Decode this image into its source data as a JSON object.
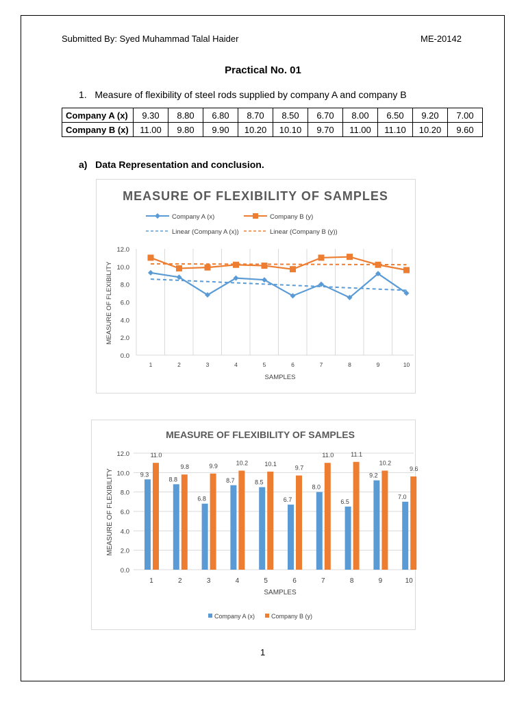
{
  "header": {
    "submitted_by": "Submitted By: Syed Muhammad Talal Haider",
    "roll_no": "ME-20142"
  },
  "title": "Practical No. 01",
  "question": "1.   Measure of flexibility of steel rods supplied by company A and company B",
  "table": {
    "rows": [
      {
        "label": "Company A (x)",
        "values": [
          "9.30",
          "8.80",
          "6.80",
          "8.70",
          "8.50",
          "6.70",
          "8.00",
          "6.50",
          "9.20",
          "7.00"
        ]
      },
      {
        "label": "Company B (x)",
        "values": [
          "11.00",
          "9.80",
          "9.90",
          "10.20",
          "10.10",
          "9.70",
          "11.00",
          "11.10",
          "10.20",
          "9.60"
        ]
      }
    ]
  },
  "section": "a)   Data Representation and conclusion.",
  "page_number": "1",
  "colors": {
    "company_a": "#5b9bd5",
    "company_b": "#ed7d31",
    "grid": "#d9d9d9",
    "title": "#595959"
  },
  "chart_data": [
    {
      "type": "line",
      "title": "MEASURE OF FLEXIBILITY OF SAMPLES",
      "xlabel": "SAMPLES",
      "ylabel": "MEASURE OF FLEXIBILITY",
      "categories": [
        "1",
        "2",
        "3",
        "4",
        "5",
        "6",
        "7",
        "8",
        "9",
        "10"
      ],
      "ylim": [
        0,
        12
      ],
      "yticks": [
        "0.0",
        "2.0",
        "4.0",
        "6.0",
        "8.0",
        "10.0",
        "12.0"
      ],
      "grid": "vertical",
      "legend": "top",
      "series": [
        {
          "name": "Company A (x)",
          "values": [
            9.3,
            8.8,
            6.8,
            8.7,
            8.5,
            6.7,
            8.0,
            6.5,
            9.2,
            7.0
          ],
          "marker": "diamond"
        },
        {
          "name": "Company B (y)",
          "values": [
            11.0,
            9.8,
            9.9,
            10.2,
            10.1,
            9.7,
            11.0,
            11.1,
            10.2,
            9.6
          ],
          "marker": "square"
        }
      ],
      "trendlines": [
        {
          "name": "Linear (Company A (x))",
          "of": 0
        },
        {
          "name": "Linear (Company B (y))",
          "of": 1
        }
      ]
    },
    {
      "type": "bar",
      "title": "MEASURE OF FLEXIBILITY OF SAMPLES",
      "xlabel": "SAMPLES",
      "ylabel": "MEASURE OF FLEXIBILITY",
      "categories": [
        "1",
        "2",
        "3",
        "4",
        "5",
        "6",
        "7",
        "8",
        "9",
        "10"
      ],
      "ylim": [
        0,
        12
      ],
      "yticks": [
        "0.0",
        "2.0",
        "4.0",
        "6.0",
        "8.0",
        "10.0",
        "12.0"
      ],
      "grid": "horizontal",
      "legend": "bottom",
      "data_labels": true,
      "series": [
        {
          "name": "Company A (x)",
          "values": [
            9.3,
            8.8,
            6.8,
            8.7,
            8.5,
            6.7,
            8.0,
            6.5,
            9.2,
            7.0
          ],
          "labels": [
            "9.3",
            "8.8",
            "6.8",
            "8.7",
            "8.5",
            "6.7",
            "8.0",
            "6.5",
            "9.2",
            "7.0"
          ]
        },
        {
          "name": "Company B (y)",
          "values": [
            11.0,
            9.8,
            9.9,
            10.2,
            10.1,
            9.7,
            11.0,
            11.1,
            10.2,
            9.6
          ],
          "labels": [
            "11.0",
            "9.8",
            "9.9",
            "10.2",
            "10.1",
            "9.7",
            "11.0",
            "11.1",
            "10.2",
            "9.6"
          ]
        }
      ]
    }
  ]
}
